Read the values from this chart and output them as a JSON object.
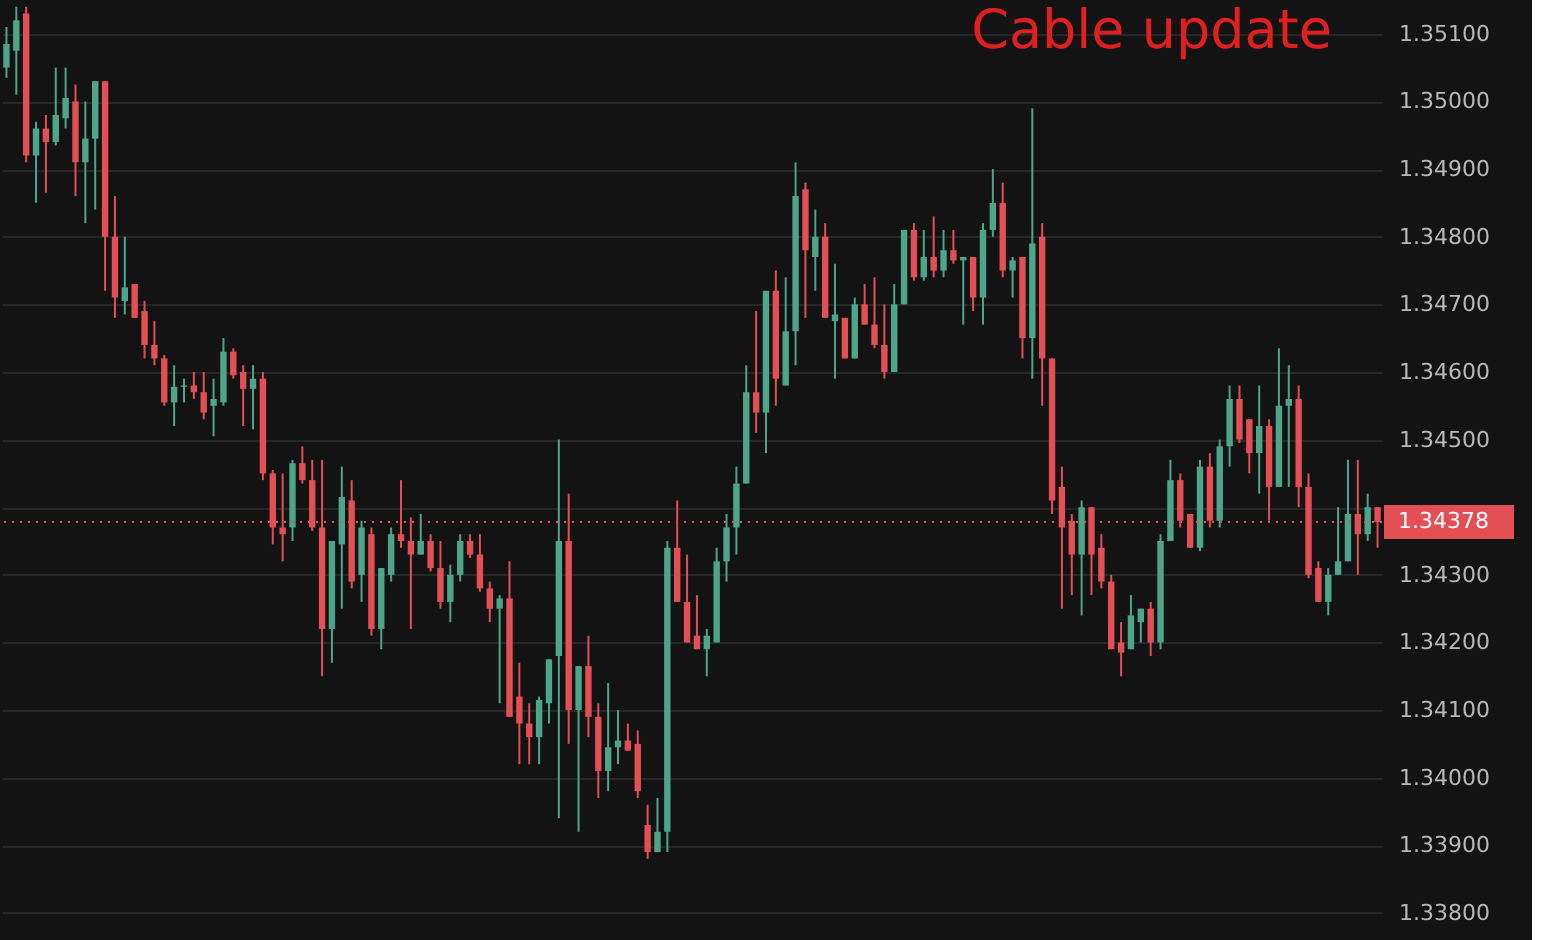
{
  "chart_data": {
    "type": "candlestick",
    "title": "Cable update",
    "categories": [
      null,
      null,
      null,
      null,
      null,
      null,
      null,
      null,
      null,
      null,
      null,
      null,
      null,
      null,
      null,
      null,
      null,
      null,
      null,
      null,
      null,
      null,
      null,
      null,
      null,
      null,
      null,
      null,
      null,
      null,
      null,
      null,
      null,
      null,
      null,
      null,
      null,
      null,
      null,
      null,
      null,
      null,
      null,
      null,
      null,
      null,
      null,
      null,
      null,
      null,
      null,
      null,
      null,
      null,
      null,
      null,
      null,
      null,
      null,
      null,
      null,
      null,
      null,
      null,
      null,
      null,
      null,
      null,
      null,
      null,
      null,
      null,
      null,
      null,
      null,
      null,
      null,
      null,
      null,
      null,
      null,
      null,
      null,
      null,
      null,
      null,
      null,
      null,
      null,
      null,
      null,
      null,
      null,
      null,
      null,
      null,
      null,
      null,
      null,
      null,
      null,
      null,
      null,
      null,
      null,
      null,
      null,
      null,
      null,
      null,
      null,
      null,
      null,
      null,
      null,
      null,
      null,
      null,
      null,
      null,
      null,
      null,
      null,
      null,
      null,
      null,
      null,
      null,
      null,
      null,
      null,
      null,
      null,
      null,
      null,
      null,
      null,
      null,
      null,
      null
    ],
    "ohlc": [
      [
        1.3505,
        1.3511,
        1.35035,
        1.35085
      ],
      [
        1.35075,
        1.3514,
        1.3501,
        1.3512
      ],
      [
        1.3513,
        1.3514,
        1.3491,
        1.3492
      ],
      [
        1.3492,
        1.3497,
        1.3485,
        1.3496
      ],
      [
        1.3496,
        1.3498,
        1.34865,
        1.3494
      ],
      [
        1.3494,
        1.3505,
        1.34935,
        1.3498
      ],
      [
        1.34975,
        1.3505,
        1.3496,
        1.35005
      ],
      [
        1.35,
        1.35025,
        1.3486,
        1.3491
      ],
      [
        1.3491,
        1.35,
        1.3482,
        1.34945
      ],
      [
        1.34945,
        1.3503,
        1.3484,
        1.3503
      ],
      [
        1.3503,
        1.3503,
        1.3472,
        1.348
      ],
      [
        1.348,
        1.3486,
        1.3468,
        1.3471
      ],
      [
        1.34705,
        1.348,
        1.34685,
        1.34725
      ],
      [
        1.3473,
        1.3473,
        1.3468,
        1.3468
      ],
      [
        1.3469,
        1.34705,
        1.3462,
        1.3464
      ],
      [
        1.3464,
        1.34675,
        1.3461,
        1.3462
      ],
      [
        1.3462,
        1.34625,
        1.3455,
        1.34555
      ],
      [
        1.34555,
        1.3461,
        1.3452,
        1.34578
      ],
      [
        1.34578,
        1.3459,
        1.34555,
        1.3458
      ],
      [
        1.3458,
        1.346,
        1.3456,
        1.3457
      ],
      [
        1.3457,
        1.346,
        1.3453,
        1.3454
      ],
      [
        1.3455,
        1.3459,
        1.34505,
        1.3456
      ],
      [
        1.34555,
        1.3465,
        1.3455,
        1.3463
      ],
      [
        1.3463,
        1.34635,
        1.3459,
        1.34595
      ],
      [
        1.346,
        1.3461,
        1.3452,
        1.34575
      ],
      [
        1.34575,
        1.3461,
        1.34515,
        1.3459
      ],
      [
        1.3459,
        1.346,
        1.3444,
        1.3445
      ],
      [
        1.3445,
        1.34455,
        1.34345,
        1.3437
      ],
      [
        1.3437,
        1.3445,
        1.3432,
        1.3436
      ],
      [
        1.3437,
        1.3447,
        1.3435,
        1.34465
      ],
      [
        1.34465,
        1.3449,
        1.34435,
        1.3444
      ],
      [
        1.3444,
        1.3447,
        1.34365,
        1.3437
      ],
      [
        1.3437,
        1.3447,
        1.3415,
        1.3422
      ],
      [
        1.3422,
        1.3435,
        1.3417,
        1.3435
      ],
      [
        1.34345,
        1.3446,
        1.3425,
        1.34415
      ],
      [
        1.3441,
        1.3444,
        1.3428,
        1.3429
      ],
      [
        1.343,
        1.3438,
        1.3426,
        1.3437
      ],
      [
        1.3436,
        1.3437,
        1.3421,
        1.3422
      ],
      [
        1.3422,
        1.3431,
        1.3419,
        1.3431
      ],
      [
        1.343,
        1.3437,
        1.3429,
        1.3436
      ],
      [
        1.3436,
        1.3444,
        1.3434,
        1.3435
      ],
      [
        1.3435,
        1.34385,
        1.3422,
        1.3433
      ],
      [
        1.3433,
        1.3439,
        1.3433,
        1.3435
      ],
      [
        1.3435,
        1.3436,
        1.34305,
        1.3431
      ],
      [
        1.3431,
        1.3435,
        1.3425,
        1.3426
      ],
      [
        1.3426,
        1.34315,
        1.3423,
        1.343
      ],
      [
        1.343,
        1.3436,
        1.3429,
        1.3435
      ],
      [
        1.3435,
        1.3436,
        1.34325,
        1.3433
      ],
      [
        1.3433,
        1.3436,
        1.34275,
        1.3428
      ],
      [
        1.3428,
        1.3429,
        1.3423,
        1.3425
      ],
      [
        1.3425,
        1.3427,
        1.3411,
        1.34265
      ],
      [
        1.34265,
        1.3432,
        1.3409,
        1.3409
      ],
      [
        1.3412,
        1.3417,
        1.3402,
        1.3408
      ],
      [
        1.3408,
        1.3411,
        1.3402,
        1.3406
      ],
      [
        1.3406,
        1.3412,
        1.3402,
        1.34115
      ],
      [
        1.3411,
        1.34175,
        1.3408,
        1.34175
      ],
      [
        1.3418,
        1.345,
        1.3394,
        1.3435
      ],
      [
        1.3435,
        1.3442,
        1.3405,
        1.341
      ],
      [
        1.341,
        1.34165,
        1.3392,
        1.34165
      ],
      [
        1.34165,
        1.3421,
        1.3406,
        1.3409
      ],
      [
        1.3409,
        1.3411,
        1.3397,
        1.3401
      ],
      [
        1.3401,
        1.3414,
        1.3398,
        1.34045
      ],
      [
        1.34045,
        1.341,
        1.3402,
        1.34055
      ],
      [
        1.34055,
        1.3408,
        1.3404,
        1.3404
      ],
      [
        1.3405,
        1.3407,
        1.3397,
        1.3398
      ],
      [
        1.3393,
        1.3396,
        1.3388,
        1.3389
      ],
      [
        1.3389,
        1.3397,
        1.3389,
        1.3392
      ],
      [
        1.3392,
        1.3435,
        1.3389,
        1.3434
      ],
      [
        1.3434,
        1.3441,
        1.3426,
        1.3426
      ],
      [
        1.3426,
        1.3433,
        1.342,
        1.342
      ],
      [
        1.3421,
        1.3427,
        1.3419,
        1.3419
      ],
      [
        1.3419,
        1.3422,
        1.3415,
        1.3421
      ],
      [
        1.342,
        1.3434,
        1.342,
        1.3432
      ],
      [
        1.3432,
        1.3439,
        1.3429,
        1.3437
      ],
      [
        1.3437,
        1.3446,
        1.3433,
        1.34435
      ],
      [
        1.34435,
        1.3461,
        1.34435,
        1.3457
      ],
      [
        1.3457,
        1.3469,
        1.3451,
        1.3454
      ],
      [
        1.3454,
        1.3472,
        1.3448,
        1.3472
      ],
      [
        1.3472,
        1.3475,
        1.3455,
        1.3459
      ],
      [
        1.3458,
        1.3474,
        1.3458,
        1.3466
      ],
      [
        1.3466,
        1.3491,
        1.3461,
        1.3486
      ],
      [
        1.3487,
        1.3488,
        1.3468,
        1.3478
      ],
      [
        1.3477,
        1.3484,
        1.3472,
        1.348
      ],
      [
        1.348,
        1.3482,
        1.3468,
        1.3468
      ],
      [
        1.34675,
        1.3476,
        1.3459,
        1.34685
      ],
      [
        1.3468,
        1.3468,
        1.3462,
        1.3462
      ],
      [
        1.3462,
        1.3471,
        1.3462,
        1.347
      ],
      [
        1.347,
        1.3473,
        1.3467,
        1.3467
      ],
      [
        1.3467,
        1.3474,
        1.34635,
        1.3464
      ],
      [
        1.3464,
        1.347,
        1.3459,
        1.346
      ],
      [
        1.346,
        1.3473,
        1.346,
        1.347
      ],
      [
        1.347,
        1.3481,
        1.347,
        1.3481
      ],
      [
        1.3481,
        1.3482,
        1.34735,
        1.3474
      ],
      [
        1.3474,
        1.3481,
        1.34735,
        1.3477
      ],
      [
        1.3477,
        1.3483,
        1.3474,
        1.3475
      ],
      [
        1.3475,
        1.3481,
        1.3474,
        1.3478
      ],
      [
        1.3478,
        1.3481,
        1.3476,
        1.34765
      ],
      [
        1.34765,
        1.3477,
        1.3467,
        1.3477
      ],
      [
        1.3477,
        1.3477,
        1.3469,
        1.3471
      ],
      [
        1.3471,
        1.3482,
        1.3467,
        1.3481
      ],
      [
        1.3481,
        1.349,
        1.348,
        1.3485
      ],
      [
        1.3485,
        1.3488,
        1.3474,
        1.3475
      ],
      [
        1.3475,
        1.3477,
        1.3471,
        1.34765
      ],
      [
        1.3477,
        1.3477,
        1.3462,
        1.3465
      ],
      [
        1.3465,
        1.3499,
        1.3459,
        1.3479
      ],
      [
        1.348,
        1.3482,
        1.3455,
        1.3462
      ],
      [
        1.3462,
        1.3462,
        1.3439,
        1.3441
      ],
      [
        1.3443,
        1.3446,
        1.3425,
        1.3437
      ],
      [
        1.3438,
        1.3439,
        1.3427,
        1.3433
      ],
      [
        1.3433,
        1.3441,
        1.3424,
        1.344
      ],
      [
        1.344,
        1.344,
        1.3427,
        1.3433
      ],
      [
        1.3434,
        1.3436,
        1.3428,
        1.3429
      ],
      [
        1.3429,
        1.343,
        1.3419,
        1.3419
      ],
      [
        1.342,
        1.3423,
        1.3415,
        1.34185
      ],
      [
        1.3419,
        1.3427,
        1.3419,
        1.3424
      ],
      [
        1.3423,
        1.3425,
        1.342,
        1.3425
      ],
      [
        1.3425,
        1.3426,
        1.3418,
        1.342
      ],
      [
        1.342,
        1.3436,
        1.3419,
        1.3435
      ],
      [
        1.3435,
        1.3447,
        1.3435,
        1.3444
      ],
      [
        1.3444,
        1.3445,
        1.3437,
        1.3438
      ],
      [
        1.3439,
        1.3439,
        1.3434,
        1.3434
      ],
      [
        1.3434,
        1.3447,
        1.34335,
        1.3446
      ],
      [
        1.3446,
        1.3448,
        1.3437,
        1.3438
      ],
      [
        1.3438,
        1.345,
        1.3437,
        1.3449
      ],
      [
        1.3449,
        1.3458,
        1.3446,
        1.3456
      ],
      [
        1.3456,
        1.3458,
        1.34495,
        1.345
      ],
      [
        1.3453,
        1.3453,
        1.3445,
        1.3448
      ],
      [
        1.3448,
        1.3458,
        1.3442,
        1.3452
      ],
      [
        1.3452,
        1.3453,
        1.3438,
        1.3443
      ],
      [
        1.3443,
        1.34635,
        1.3443,
        1.3455
      ],
      [
        1.3455,
        1.3461,
        1.3443,
        1.3456
      ],
      [
        1.3456,
        1.3458,
        1.344,
        1.3443
      ],
      [
        1.3443,
        1.3445,
        1.34295,
        1.343
      ],
      [
        1.3431,
        1.3432,
        1.3426,
        1.3426
      ],
      [
        1.3426,
        1.3431,
        1.3424,
        1.343
      ],
      [
        1.343,
        1.344,
        1.343,
        1.3432
      ],
      [
        1.3432,
        1.3447,
        1.3432,
        1.3439
      ],
      [
        1.3439,
        1.3447,
        1.343,
        1.3436
      ],
      [
        1.3436,
        1.3442,
        1.3435,
        1.344
      ],
      [
        1.344,
        1.344,
        1.3434,
        1.34378
      ]
    ],
    "colors": [
      "#4da58a",
      "#4da58a",
      "#e34f55",
      "#4da58a",
      "#e34f55",
      "#4da58a",
      "#4da58a",
      "#e34f55",
      "#4da58a",
      "#4da58a",
      "#e34f55",
      "#e34f55",
      "#4da58a",
      "#e34f55",
      "#e34f55",
      "#e34f55",
      "#e34f55",
      "#4da58a",
      "#4da58a",
      "#e34f55",
      "#e34f55",
      "#4da58a",
      "#4da58a",
      "#e34f55",
      "#e34f55",
      "#4da58a",
      "#e34f55",
      "#e34f55",
      "#e34f55",
      "#4da58a",
      "#e34f55",
      "#e34f55",
      "#e34f55",
      "#4da58a",
      "#4da58a",
      "#e34f55",
      "#4da58a",
      "#e34f55",
      "#4da58a",
      "#4da58a",
      "#e34f55",
      "#e34f55",
      "#4da58a",
      "#e34f55",
      "#e34f55",
      "#4da58a",
      "#4da58a",
      "#e34f55",
      "#e34f55",
      "#e34f55",
      "#4da58a",
      "#e34f55",
      "#e34f55",
      "#e34f55",
      "#4da58a",
      "#4da58a",
      "#4da58a",
      "#e34f55",
      "#4da58a",
      "#e34f55",
      "#e34f55",
      "#4da58a",
      "#4da58a",
      "#e34f55",
      "#e34f55",
      "#e34f55",
      "#4da58a",
      "#4da58a",
      "#e34f55",
      "#e34f55",
      "#e34f55",
      "#4da58a",
      "#4da58a",
      "#4da58a",
      "#4da58a",
      "#4da58a",
      "#e34f55",
      "#4da58a",
      "#e34f55",
      "#4da58a",
      "#4da58a",
      "#e34f55",
      "#4da58a",
      "#e34f55",
      "#4da58a",
      "#e34f55",
      "#4da58a",
      "#e34f55",
      "#e34f55",
      "#e34f55",
      "#4da58a",
      "#4da58a",
      "#e34f55",
      "#4da58a",
      "#e34f55",
      "#4da58a",
      "#e34f55",
      "#4da58a",
      "#e34f55",
      "#4da58a",
      "#4da58a",
      "#e34f55",
      "#4da58a",
      "#e34f55",
      "#4da58a",
      "#e34f55",
      "#e34f55",
      "#e34f55",
      "#e34f55",
      "#4da58a",
      "#e34f55",
      "#e34f55",
      "#e34f55",
      "#e34f55",
      "#4da58a",
      "#4da58a",
      "#e34f55",
      "#4da58a",
      "#4da58a",
      "#e34f55",
      "#e34f55",
      "#4da58a",
      "#e34f55",
      "#4da58a",
      "#4da58a",
      "#e34f55",
      "#e34f55",
      "#4da58a",
      "#e34f55",
      "#4da58a",
      "#4da58a",
      "#e34f55",
      "#e34f55",
      "#e34f55",
      "#4da58a",
      "#4da58a",
      "#4da58a",
      "#e34f55",
      "#4da58a",
      "#e34f55"
    ],
    "ylim": [
      1.3376,
      1.3515
    ],
    "yticks": [
      {
        "value": 1.338,
        "label": "1.33800"
      },
      {
        "value": 1.339,
        "label": "1.33900"
      },
      {
        "value": 1.34,
        "label": "1.34000"
      },
      {
        "value": 1.341,
        "label": "1.34100"
      },
      {
        "value": 1.342,
        "label": "1.34200"
      },
      {
        "value": 1.343,
        "label": "1.34300"
      },
      {
        "value": 1.344,
        "label": null
      },
      {
        "value": 1.345,
        "label": "1.34500"
      },
      {
        "value": 1.346,
        "label": "1.34600"
      },
      {
        "value": 1.347,
        "label": "1.34700"
      },
      {
        "value": 1.348,
        "label": "1.34800"
      },
      {
        "value": 1.349,
        "label": "1.34900"
      },
      {
        "value": 1.35,
        "label": "1.35000"
      },
      {
        "value": 1.351,
        "label": "1.35100"
      }
    ],
    "ref_lines": [
      {
        "axis": "y",
        "value": 1.34378,
        "label": "1.34378",
        "color": "#e34f55",
        "line_style": "dotted"
      }
    ],
    "grid": "y",
    "tick_labels": "y"
  }
}
